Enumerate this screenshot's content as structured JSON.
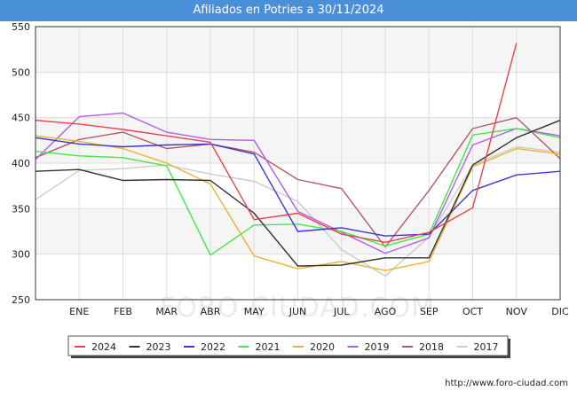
{
  "chart_data": {
    "type": "line",
    "title": "Afiliados en Potries a 30/11/2024",
    "categories": [
      "",
      "ENE",
      "FEB",
      "MAR",
      "ABR",
      "MAY",
      "JUN",
      "JUL",
      "AGO",
      "SEP",
      "OCT",
      "NOV",
      "DIC"
    ],
    "ylim": [
      250,
      550
    ],
    "yticks": [
      250,
      300,
      350,
      400,
      450,
      500,
      550
    ],
    "grid": true,
    "legend_position": "bottom",
    "watermark": "FORO-CIUDAD.COM",
    "series": [
      {
        "name": "2024",
        "color": "#e8434a",
        "values": [
          447,
          443,
          437,
          430,
          423,
          338,
          345,
          322,
          313,
          324,
          351,
          532,
          null
        ]
      },
      {
        "name": "2023",
        "color": "#333333",
        "values": [
          391,
          393,
          381,
          382,
          381,
          345,
          287,
          288,
          296,
          296,
          398,
          428,
          447
        ]
      },
      {
        "name": "2022",
        "color": "#3838d6",
        "values": [
          428,
          421,
          418,
          420,
          421,
          410,
          325,
          329,
          320,
          322,
          370,
          387,
          391
        ]
      },
      {
        "name": "2021",
        "color": "#44e844",
        "values": [
          413,
          408,
          406,
          397,
          299,
          332,
          333,
          325,
          309,
          322,
          431,
          438,
          428
        ]
      },
      {
        "name": "2020",
        "color": "#f0b030",
        "values": [
          430,
          424,
          416,
          400,
          377,
          298,
          284,
          292,
          282,
          292,
          396,
          416,
          410
        ]
      },
      {
        "name": "2019",
        "color": "#b35de8",
        "values": [
          404,
          451,
          455,
          434,
          426,
          425,
          347,
          324,
          301,
          318,
          420,
          438,
          430
        ]
      },
      {
        "name": "2018",
        "color": "#b55a5e",
        "values": [
          406,
          426,
          434,
          416,
          421,
          412,
          382,
          372,
          308,
          370,
          438,
          450,
          405
        ]
      },
      {
        "name": "2017",
        "color": "#cccccc",
        "values": [
          360,
          392,
          394,
          398,
          388,
          380,
          358,
          305,
          276,
          319,
          398,
          418,
          412
        ]
      }
    ]
  },
  "credit": "http://www.foro-ciudad.com"
}
